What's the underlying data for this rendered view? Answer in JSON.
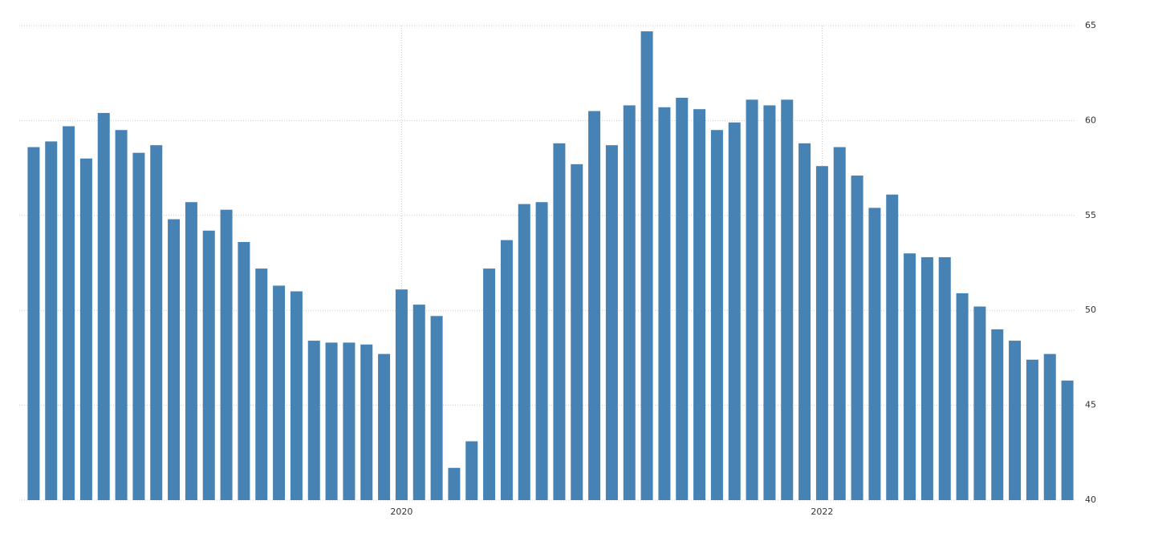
{
  "chart_data": {
    "type": "bar",
    "categories": [
      null,
      null,
      null,
      null,
      null,
      null,
      null,
      null,
      null,
      null,
      null,
      null,
      null,
      null,
      null,
      null,
      null,
      null,
      null,
      null,
      null,
      "2020",
      null,
      null,
      null,
      null,
      null,
      null,
      null,
      null,
      null,
      null,
      null,
      null,
      null,
      null,
      null,
      null,
      null,
      null,
      null,
      null,
      null,
      null,
      null,
      "2022",
      null,
      null,
      null,
      null,
      null,
      null,
      null,
      null,
      null,
      null,
      null,
      null,
      null,
      null
    ],
    "values": [
      58.6,
      58.9,
      59.7,
      58.0,
      60.4,
      59.5,
      58.3,
      58.7,
      54.8,
      55.7,
      54.2,
      55.3,
      53.6,
      52.2,
      51.3,
      51.0,
      48.4,
      48.3,
      48.3,
      48.2,
      47.7,
      51.1,
      50.3,
      49.7,
      41.7,
      43.1,
      52.2,
      53.7,
      55.6,
      55.7,
      58.8,
      57.7,
      60.5,
      58.7,
      60.8,
      64.7,
      60.7,
      61.2,
      60.6,
      59.5,
      59.9,
      61.1,
      60.8,
      61.1,
      58.8,
      57.6,
      58.6,
      57.1,
      55.4,
      56.1,
      53.0,
      52.8,
      52.8,
      50.9,
      50.2,
      49.0,
      48.4,
      47.4,
      47.7,
      46.3
    ],
    "color": "#4682b4",
    "ylim": [
      40,
      65
    ],
    "yticks": [
      40,
      45,
      50,
      55,
      60,
      65
    ],
    "grid": true
  }
}
